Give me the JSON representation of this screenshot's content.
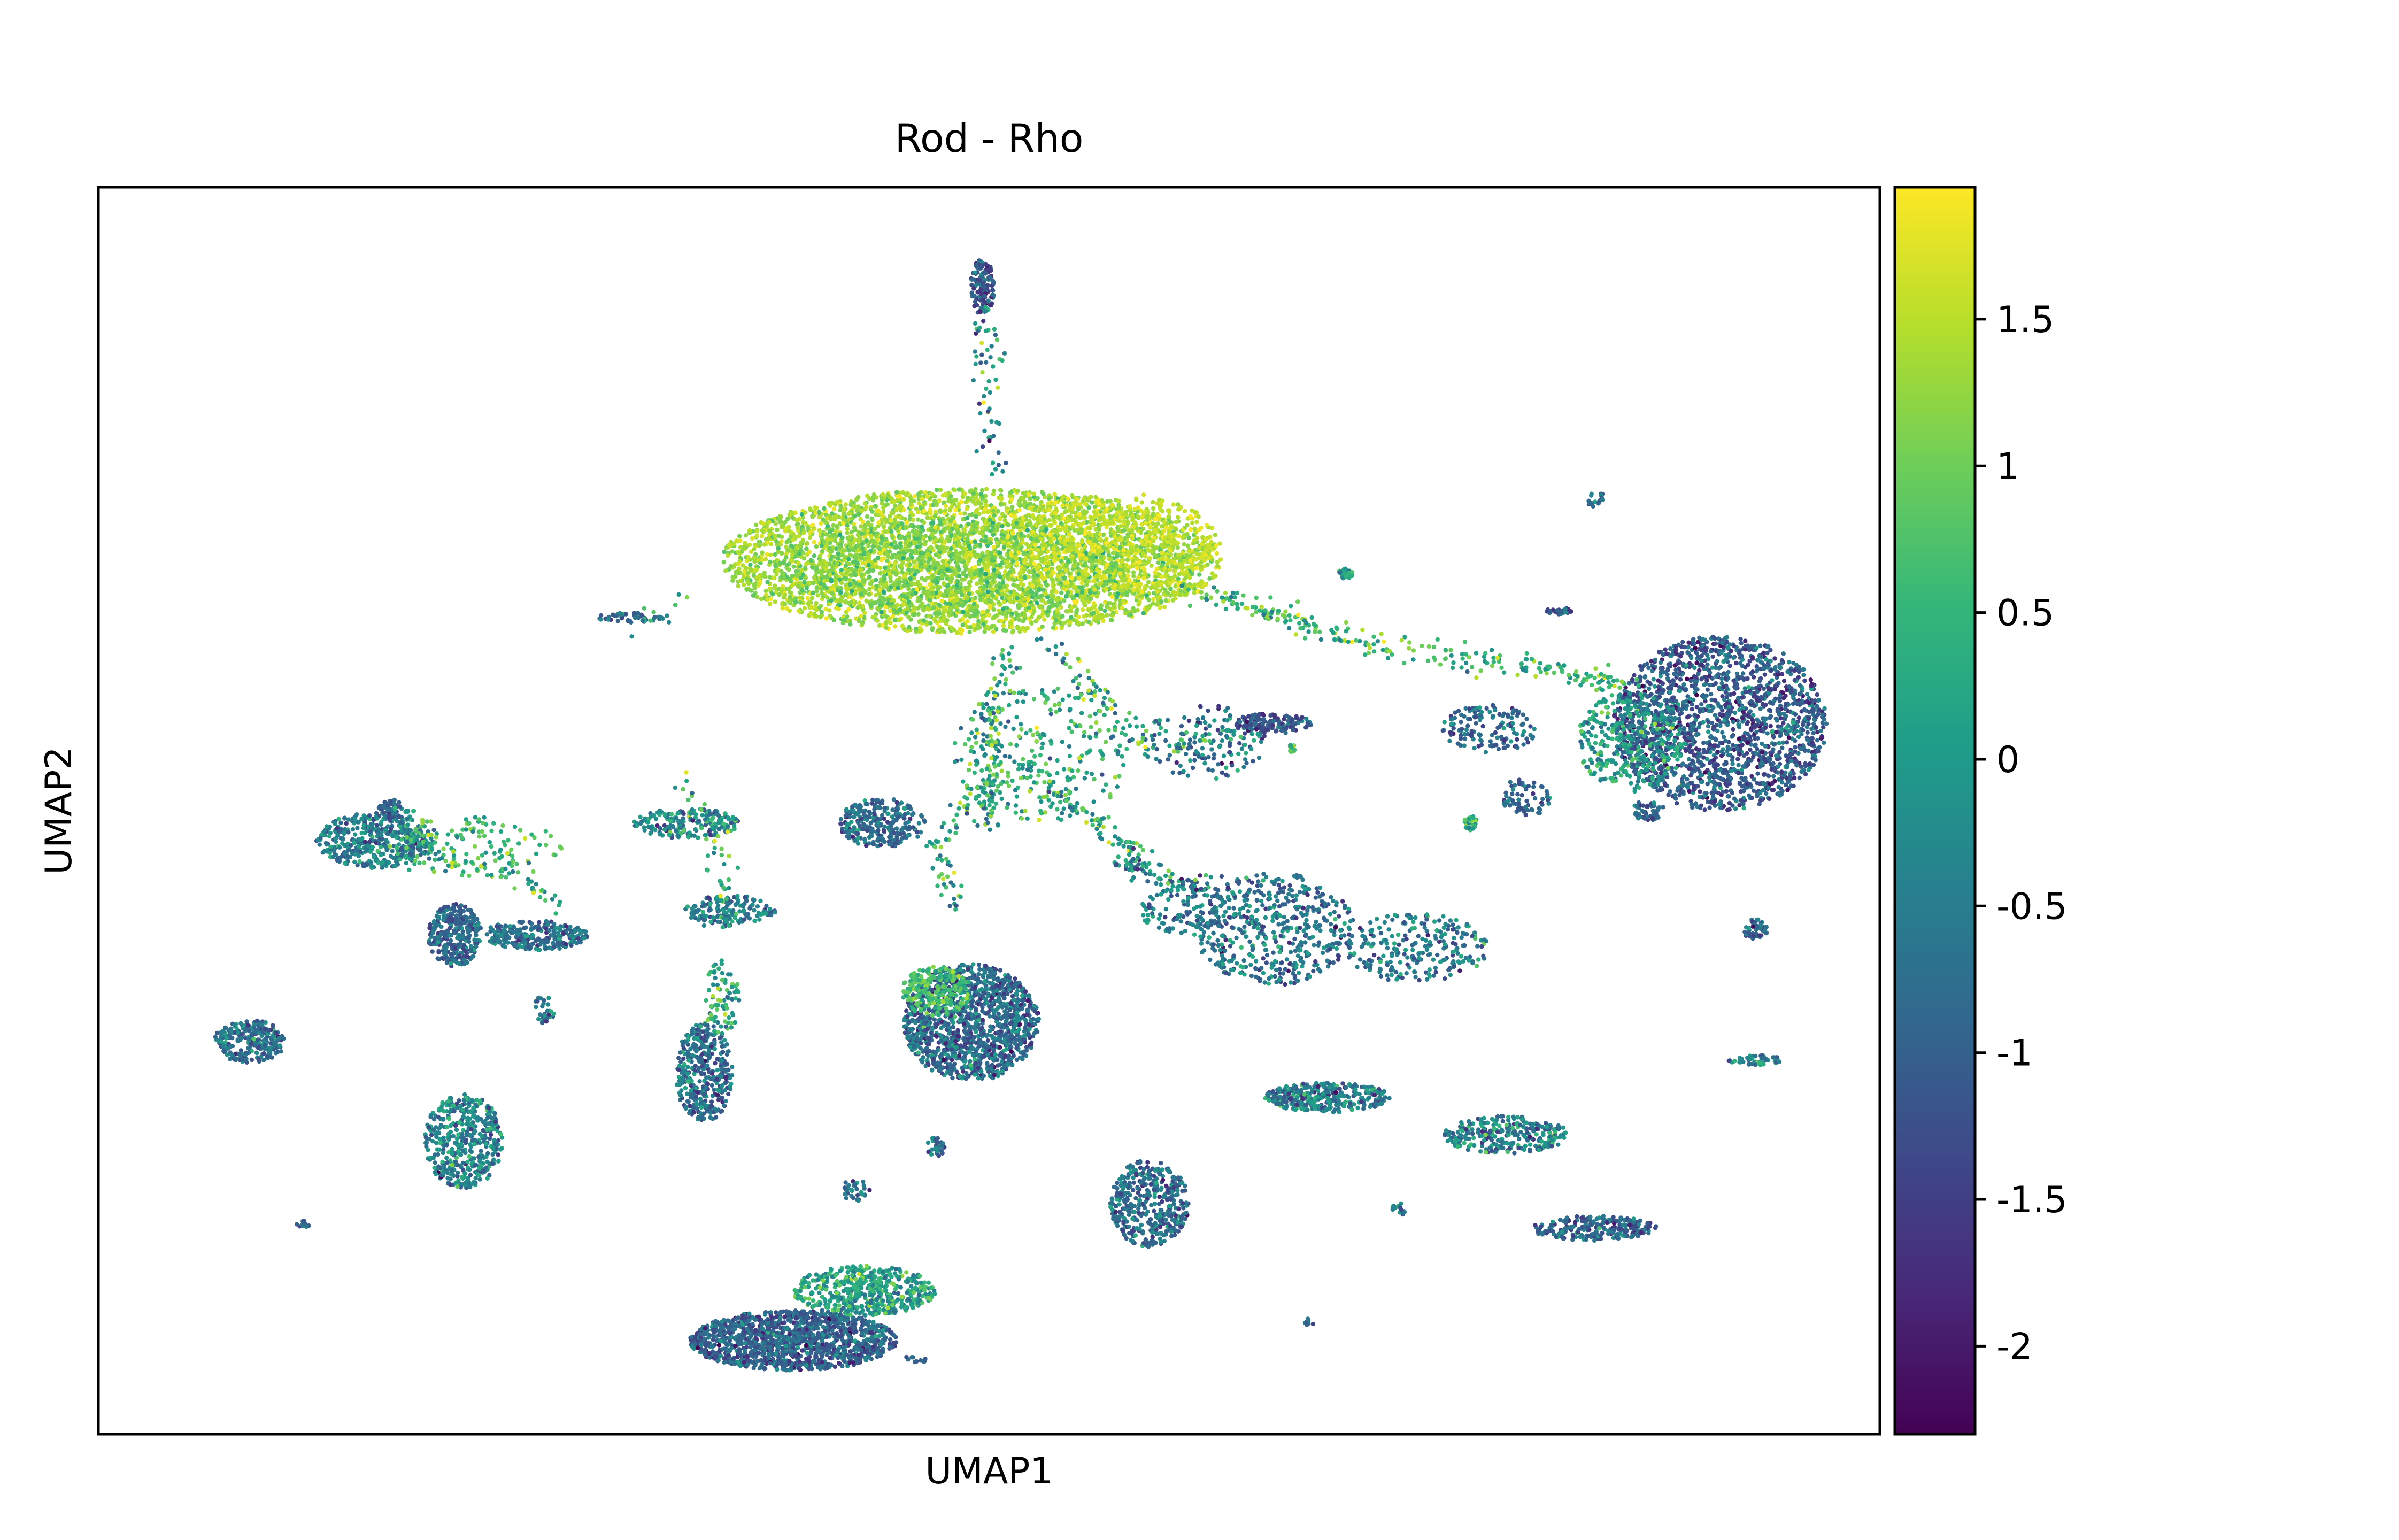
{
  "figure": {
    "title": "Rod - Rho",
    "xlabel": "UMAP1",
    "ylabel": "UMAP2"
  },
  "chart_data": {
    "type": "scatter",
    "title": "Rod - Rho",
    "xlabel": "UMAP1",
    "ylabel": "UMAP2",
    "axis_ticks_shown": false,
    "grid": false,
    "colormap": "viridis",
    "colormap_stops": [
      "#440154",
      "#482878",
      "#3e4989",
      "#31688e",
      "#26828e",
      "#1f9e89",
      "#35b779",
      "#6ece58",
      "#b5de2b",
      "#fde725"
    ],
    "colorbar": {
      "position": "right",
      "range": [
        -2.3,
        1.95
      ],
      "ticks": [
        1.5,
        1,
        0.5,
        0,
        -0.5,
        -1,
        -1.5,
        -2
      ],
      "tick_labels": [
        "1.5",
        "1",
        "0.5",
        "0",
        "-0.5",
        "-1",
        "-1.5",
        "-2"
      ]
    },
    "point_color": "Rho expression value mapped through viridis colormap",
    "cluster_x_range": [
      0,
      1
    ],
    "cluster_y_range": [
      0,
      1
    ],
    "clusters": [
      {
        "x": 0.49,
        "y": 0.7,
        "rx": 0.14,
        "ry": 0.058,
        "n": 3800,
        "mean": 1.35,
        "sd": 0.28
      },
      {
        "x": 0.48,
        "y": 0.695,
        "rx": 0.1,
        "ry": 0.04,
        "n": 900,
        "mean": 1.05,
        "sd": 0.3
      },
      {
        "x": 0.57,
        "y": 0.715,
        "rx": 0.06,
        "ry": 0.04,
        "n": 500,
        "mean": 1.6,
        "sd": 0.2
      },
      {
        "x": 0.496,
        "y": 0.92,
        "rx": 0.007,
        "ry": 0.022,
        "n": 140,
        "mean": -1.0,
        "sd": 0.45
      },
      {
        "x": 0.91,
        "y": 0.57,
        "rx": 0.06,
        "ry": 0.07,
        "n": 1800,
        "mean": -1.05,
        "sd": 0.5
      },
      {
        "x": 0.86,
        "y": 0.555,
        "rx": 0.03,
        "ry": 0.04,
        "n": 300,
        "mean": 0.1,
        "sd": 0.5
      },
      {
        "x": 0.49,
        "y": 0.33,
        "rx": 0.038,
        "ry": 0.047,
        "n": 1300,
        "mean": -0.85,
        "sd": 0.5
      },
      {
        "x": 0.47,
        "y": 0.355,
        "rx": 0.02,
        "ry": 0.02,
        "n": 220,
        "mean": 0.7,
        "sd": 0.35
      },
      {
        "x": 0.39,
        "y": 0.075,
        "rx": 0.058,
        "ry": 0.024,
        "n": 1300,
        "mean": -0.95,
        "sd": 0.45
      },
      {
        "x": 0.43,
        "y": 0.115,
        "rx": 0.04,
        "ry": 0.02,
        "n": 500,
        "mean": 0.15,
        "sd": 0.5
      },
      {
        "x": 0.155,
        "y": 0.476,
        "rx": 0.033,
        "ry": 0.022,
        "n": 450,
        "mean": -0.55,
        "sd": 0.45
      },
      {
        "x": 0.2,
        "y": 0.4,
        "rx": 0.015,
        "ry": 0.025,
        "n": 300,
        "mean": -0.85,
        "sd": 0.4
      },
      {
        "x": 0.245,
        "y": 0.4,
        "rx": 0.03,
        "ry": 0.012,
        "n": 250,
        "mean": -0.7,
        "sd": 0.45
      },
      {
        "x": 0.21,
        "y": 0.47,
        "rx": 0.05,
        "ry": 0.025,
        "n": 120,
        "mean": 0.6,
        "sd": 0.4
      },
      {
        "x": 0.165,
        "y": 0.5,
        "rx": 0.008,
        "ry": 0.009,
        "n": 50,
        "mean": -1.0,
        "sd": 0.4
      },
      {
        "x": 0.085,
        "y": 0.315,
        "rx": 0.02,
        "ry": 0.017,
        "n": 260,
        "mean": -0.75,
        "sd": 0.5
      },
      {
        "x": 0.205,
        "y": 0.235,
        "rx": 0.022,
        "ry": 0.038,
        "n": 450,
        "mean": -0.45,
        "sd": 0.55
      },
      {
        "x": 0.33,
        "y": 0.49,
        "rx": 0.03,
        "ry": 0.012,
        "n": 200,
        "mean": -0.3,
        "sd": 0.6
      },
      {
        "x": 0.355,
        "y": 0.42,
        "rx": 0.026,
        "ry": 0.012,
        "n": 150,
        "mean": -0.5,
        "sd": 0.55
      },
      {
        "x": 0.34,
        "y": 0.29,
        "rx": 0.016,
        "ry": 0.04,
        "n": 380,
        "mean": -0.75,
        "sd": 0.5
      },
      {
        "x": 0.35,
        "y": 0.35,
        "rx": 0.01,
        "ry": 0.03,
        "n": 80,
        "mean": 0.2,
        "sd": 0.6
      },
      {
        "x": 0.44,
        "y": 0.49,
        "rx": 0.024,
        "ry": 0.02,
        "n": 260,
        "mean": -0.8,
        "sd": 0.45
      },
      {
        "x": 0.53,
        "y": 0.545,
        "rx": 0.05,
        "ry": 0.055,
        "n": 260,
        "mean": 0.3,
        "sd": 0.6
      },
      {
        "x": 0.62,
        "y": 0.555,
        "rx": 0.035,
        "ry": 0.03,
        "n": 150,
        "mean": -0.6,
        "sd": 0.6
      },
      {
        "x": 0.66,
        "y": 0.405,
        "rx": 0.045,
        "ry": 0.045,
        "n": 480,
        "mean": -0.65,
        "sd": 0.55
      },
      {
        "x": 0.74,
        "y": 0.39,
        "rx": 0.04,
        "ry": 0.028,
        "n": 250,
        "mean": -0.5,
        "sd": 0.55
      },
      {
        "x": 0.61,
        "y": 0.42,
        "rx": 0.025,
        "ry": 0.02,
        "n": 100,
        "mean": -0.55,
        "sd": 0.5
      },
      {
        "x": 0.78,
        "y": 0.565,
        "rx": 0.027,
        "ry": 0.02,
        "n": 150,
        "mean": -0.85,
        "sd": 0.5
      },
      {
        "x": 0.66,
        "y": 0.57,
        "rx": 0.022,
        "ry": 0.008,
        "n": 130,
        "mean": -1.15,
        "sd": 0.4
      },
      {
        "x": 0.69,
        "y": 0.27,
        "rx": 0.035,
        "ry": 0.012,
        "n": 320,
        "mean": -0.5,
        "sd": 0.55
      },
      {
        "x": 0.79,
        "y": 0.24,
        "rx": 0.035,
        "ry": 0.015,
        "n": 280,
        "mean": -0.45,
        "sd": 0.6
      },
      {
        "x": 0.59,
        "y": 0.185,
        "rx": 0.022,
        "ry": 0.035,
        "n": 400,
        "mean": -0.75,
        "sd": 0.5
      },
      {
        "x": 0.84,
        "y": 0.165,
        "rx": 0.035,
        "ry": 0.01,
        "n": 240,
        "mean": -0.95,
        "sd": 0.5
      },
      {
        "x": 0.7,
        "y": 0.69,
        "rx": 0.004,
        "ry": 0.004,
        "n": 40,
        "mean": 0.2,
        "sd": 0.5
      },
      {
        "x": 0.3,
        "y": 0.655,
        "rx": 0.022,
        "ry": 0.004,
        "n": 50,
        "mean": -0.9,
        "sd": 0.5
      },
      {
        "x": 0.93,
        "y": 0.3,
        "rx": 0.015,
        "ry": 0.004,
        "n": 50,
        "mean": -0.4,
        "sd": 0.6
      },
      {
        "x": 0.87,
        "y": 0.5,
        "rx": 0.009,
        "ry": 0.008,
        "n": 50,
        "mean": -0.95,
        "sd": 0.4
      },
      {
        "x": 0.93,
        "y": 0.405,
        "rx": 0.007,
        "ry": 0.008,
        "n": 45,
        "mean": -1.0,
        "sd": 0.4
      },
      {
        "x": 0.8,
        "y": 0.51,
        "rx": 0.015,
        "ry": 0.015,
        "n": 70,
        "mean": -0.9,
        "sd": 0.4
      },
      {
        "x": 0.77,
        "y": 0.49,
        "rx": 0.004,
        "ry": 0.006,
        "n": 30,
        "mean": 0.5,
        "sd": 0.5
      },
      {
        "x": 0.67,
        "y": 0.55,
        "rx": 0.002,
        "ry": 0.003,
        "n": 20,
        "mean": 0.7,
        "sd": 0.3
      },
      {
        "x": 0.82,
        "y": 0.66,
        "rx": 0.007,
        "ry": 0.003,
        "n": 30,
        "mean": -1.0,
        "sd": 0.4
      },
      {
        "x": 0.84,
        "y": 0.75,
        "rx": 0.005,
        "ry": 0.008,
        "n": 20,
        "mean": -0.8,
        "sd": 0.4
      },
      {
        "x": 0.25,
        "y": 0.34,
        "rx": 0.006,
        "ry": 0.012,
        "n": 30,
        "mean": -0.5,
        "sd": 0.5
      },
      {
        "x": 0.47,
        "y": 0.23,
        "rx": 0.005,
        "ry": 0.008,
        "n": 30,
        "mean": -0.7,
        "sd": 0.5
      },
      {
        "x": 0.425,
        "y": 0.195,
        "rx": 0.008,
        "ry": 0.01,
        "n": 30,
        "mean": -0.7,
        "sd": 0.5
      },
      {
        "x": 0.73,
        "y": 0.18,
        "rx": 0.004,
        "ry": 0.006,
        "n": 20,
        "mean": -0.2,
        "sd": 0.6
      },
      {
        "x": 0.115,
        "y": 0.168,
        "rx": 0.004,
        "ry": 0.003,
        "n": 10,
        "mean": -0.9,
        "sd": 0.4
      },
      {
        "x": 0.68,
        "y": 0.09,
        "rx": 0.003,
        "ry": 0.003,
        "n": 8,
        "mean": -0.9,
        "sd": 0.4
      },
      {
        "x": 0.46,
        "y": 0.06,
        "rx": 0.008,
        "ry": 0.003,
        "n": 10,
        "mean": -0.9,
        "sd": 0.4
      }
    ],
    "paths": [
      {
        "points": [
          [
            0.496,
            0.9
          ],
          [
            0.5,
            0.83
          ],
          [
            0.5,
            0.77
          ]
        ],
        "n": 60,
        "mean": -0.2,
        "sd": 0.9
      },
      {
        "points": [
          [
            0.61,
            0.68
          ],
          [
            0.72,
            0.63
          ],
          [
            0.83,
            0.61
          ],
          [
            0.86,
            0.6
          ]
        ],
        "n": 260,
        "mean": 0.6,
        "sd": 0.6
      },
      {
        "points": [
          [
            0.53,
            0.64
          ],
          [
            0.59,
            0.55
          ],
          [
            0.64,
            0.56
          ]
        ],
        "n": 90,
        "mean": 0.2,
        "sd": 0.8
      },
      {
        "points": [
          [
            0.51,
            0.63
          ],
          [
            0.5,
            0.56
          ],
          [
            0.5,
            0.49
          ]
        ],
        "n": 130,
        "mean": 0.3,
        "sd": 0.7
      },
      {
        "points": [
          [
            0.5,
            0.52
          ],
          [
            0.47,
            0.48
          ],
          [
            0.48,
            0.42
          ]
        ],
        "n": 70,
        "mean": 0.4,
        "sd": 0.7
      },
      {
        "points": [
          [
            0.52,
            0.54
          ],
          [
            0.56,
            0.49
          ],
          [
            0.59,
            0.46
          ]
        ],
        "n": 90,
        "mean": 0.2,
        "sd": 0.8
      },
      {
        "points": [
          [
            0.33,
            0.52
          ],
          [
            0.35,
            0.47
          ],
          [
            0.35,
            0.4
          ]
        ],
        "n": 50,
        "mean": 0.5,
        "sd": 0.7
      },
      {
        "points": [
          [
            0.57,
            0.46
          ],
          [
            0.61,
            0.44
          ],
          [
            0.64,
            0.43
          ]
        ],
        "n": 100,
        "mean": -0.3,
        "sd": 0.7
      },
      {
        "points": [
          [
            0.3,
            0.65
          ],
          [
            0.33,
            0.665
          ]
        ],
        "n": 12,
        "mean": 0.5,
        "sd": 0.6
      },
      {
        "points": [
          [
            0.17,
            0.5
          ],
          [
            0.19,
            0.46
          ],
          [
            0.24,
            0.45
          ],
          [
            0.26,
            0.42
          ]
        ],
        "n": 90,
        "mean": 0.3,
        "sd": 0.7
      }
    ]
  }
}
